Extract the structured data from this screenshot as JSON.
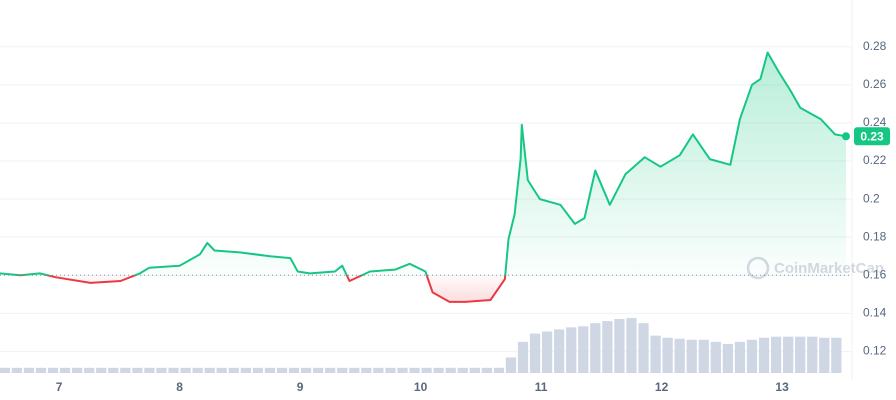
{
  "chart_data": {
    "type": "line",
    "watermark": "CoinMarketCap",
    "last_label": "0.23",
    "baseline": 0.16,
    "up_color": "#16c784",
    "down_color": "#ea3943",
    "xlim": [
      6.51,
      13.58
    ],
    "ylim": [
      0.105,
      0.295
    ],
    "xticks": [
      7,
      8,
      9,
      10,
      11,
      12,
      13
    ],
    "yticks": [
      0.12,
      0.14,
      0.16,
      0.18,
      0.2,
      0.22,
      0.24,
      0.26,
      0.28
    ],
    "grid": true,
    "series": [
      {
        "x": [
          6.51,
          6.68,
          6.84,
          6.97,
          7.26,
          7.51,
          7.67,
          7.75,
          8.0,
          8.17,
          8.23,
          8.29,
          8.5,
          8.75,
          8.92,
          8.98,
          9.08,
          9.29,
          9.35,
          9.41,
          9.58,
          9.79,
          9.91,
          10.04,
          10.1,
          10.24,
          10.37,
          10.58,
          10.7,
          10.73,
          10.78,
          10.83,
          10.84,
          10.89,
          10.99,
          11.16,
          11.28,
          11.36,
          11.45,
          11.57,
          11.7,
          11.86,
          11.99,
          12.15,
          12.26,
          12.4,
          12.57,
          12.65,
          12.75,
          12.82,
          12.88,
          12.97,
          13.07,
          13.15,
          13.32,
          13.44,
          13.53
        ],
        "values": [
          0.161,
          0.16,
          0.161,
          0.159,
          0.156,
          0.157,
          0.161,
          0.164,
          0.165,
          0.171,
          0.177,
          0.173,
          0.172,
          0.17,
          0.169,
          0.162,
          0.161,
          0.162,
          0.165,
          0.157,
          0.162,
          0.163,
          0.166,
          0.162,
          0.151,
          0.146,
          0.146,
          0.147,
          0.158,
          0.179,
          0.192,
          0.221,
          0.239,
          0.21,
          0.2,
          0.197,
          0.187,
          0.19,
          0.215,
          0.197,
          0.213,
          0.222,
          0.217,
          0.223,
          0.234,
          0.221,
          0.218,
          0.242,
          0.26,
          0.263,
          0.277,
          0.267,
          0.257,
          0.248,
          0.242,
          0.234,
          0.233
        ]
      }
    ],
    "volume": {
      "color": "#cfd6e4",
      "x": [
        6.55,
        6.65,
        6.75,
        6.85,
        6.95,
        7.05,
        7.15,
        7.25,
        7.35,
        7.45,
        7.55,
        7.65,
        7.75,
        7.85,
        7.95,
        8.05,
        8.15,
        8.25,
        8.35,
        8.45,
        8.55,
        8.65,
        8.75,
        8.85,
        8.95,
        9.05,
        9.15,
        9.25,
        9.35,
        9.45,
        9.55,
        9.65,
        9.75,
        9.85,
        9.95,
        10.05,
        10.15,
        10.25,
        10.35,
        10.45,
        10.55,
        10.65,
        10.75,
        10.85,
        10.95,
        11.05,
        11.15,
        11.25,
        11.35,
        11.45,
        11.55,
        11.65,
        11.75,
        11.85,
        11.95,
        12.05,
        12.15,
        12.25,
        12.35,
        12.45,
        12.55,
        12.65,
        12.75,
        12.85,
        12.95,
        13.05,
        13.15,
        13.25,
        13.35,
        13.45
      ],
      "values": [
        5,
        5,
        5,
        5,
        5,
        5,
        5,
        5,
        5,
        5,
        5,
        5,
        5,
        5,
        5,
        5,
        5,
        5,
        5,
        5,
        5,
        5,
        5,
        5,
        5,
        5,
        5,
        5,
        5,
        5,
        5,
        5,
        5,
        5,
        5,
        5,
        5,
        5,
        5,
        5,
        5,
        5,
        15,
        30,
        38,
        40,
        42,
        44,
        45,
        48,
        50,
        52,
        53,
        48,
        36,
        34,
        33,
        32,
        32,
        30,
        28,
        30,
        32,
        34,
        35,
        35,
        35,
        35,
        34,
        34
      ]
    }
  }
}
